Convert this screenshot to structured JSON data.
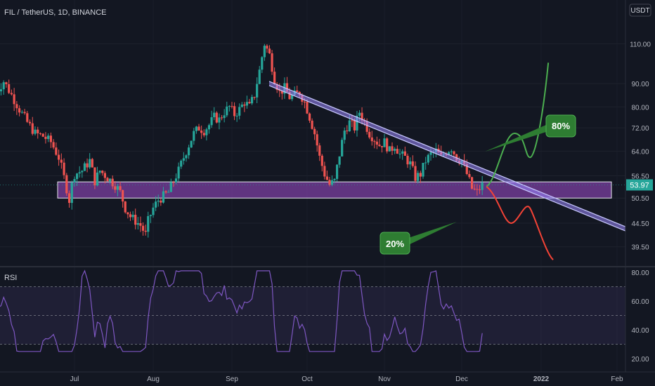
{
  "header": {
    "symbol": "FIL / TetherUS, 1D, BINANCE",
    "currency": "USDT"
  },
  "colors": {
    "background": "#131722",
    "up": "#26a69a",
    "down": "#ef5350",
    "support_zone": "#7b3fa0",
    "trendline": "#9c88ff",
    "rsi_line": "#7e57c2",
    "bull_path": "#4caf50",
    "bear_path": "#f44336",
    "callout": "#2e7d32"
  },
  "chart_data": {
    "type": "candlestick",
    "price_axis": {
      "ticks": [
        110.0,
        90.0,
        80.0,
        72.0,
        64.0,
        56.5,
        50.5,
        44.5,
        39.5
      ],
      "scale": "log",
      "range": [
        36.5,
        130
      ]
    },
    "time_axis": {
      "labels": [
        "Jul",
        "Aug",
        "Sep",
        "Oct",
        "Nov",
        "Dec",
        "2022",
        "Feb"
      ]
    },
    "last_price": 53.97,
    "support_zone": {
      "low": 50.5,
      "high": 54.8
    },
    "annotations": {
      "bull_probability": "80%",
      "bear_probability": "20%"
    },
    "rsi": {
      "label": "RSI",
      "ticks": [
        80.0,
        60.0,
        40.0,
        20.0
      ],
      "upper_band": 70,
      "middle_band": 50,
      "lower_band": 30,
      "range": [
        15,
        82
      ]
    }
  }
}
